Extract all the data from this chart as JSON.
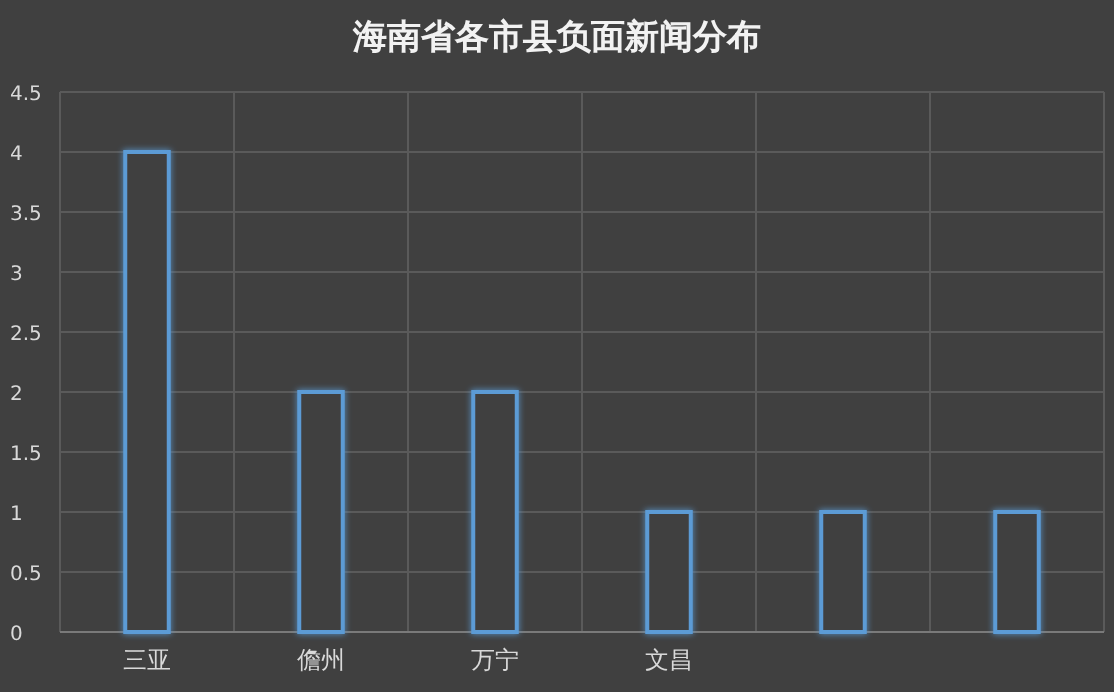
{
  "chart_data": {
    "type": "bar",
    "title": "海南省各市县负面新闻分布",
    "categories": [
      "三亚",
      "儋州",
      "万宁",
      "文昌",
      null,
      null
    ],
    "values": [
      4,
      2,
      2,
      1,
      1,
      1
    ],
    "color": "#5b9bd5",
    "ylim": [
      0,
      4.5
    ],
    "yticks": [
      0,
      0.5,
      1,
      1.5,
      2,
      2.5,
      3,
      3.5,
      4,
      4.5
    ],
    "grid": true
  }
}
